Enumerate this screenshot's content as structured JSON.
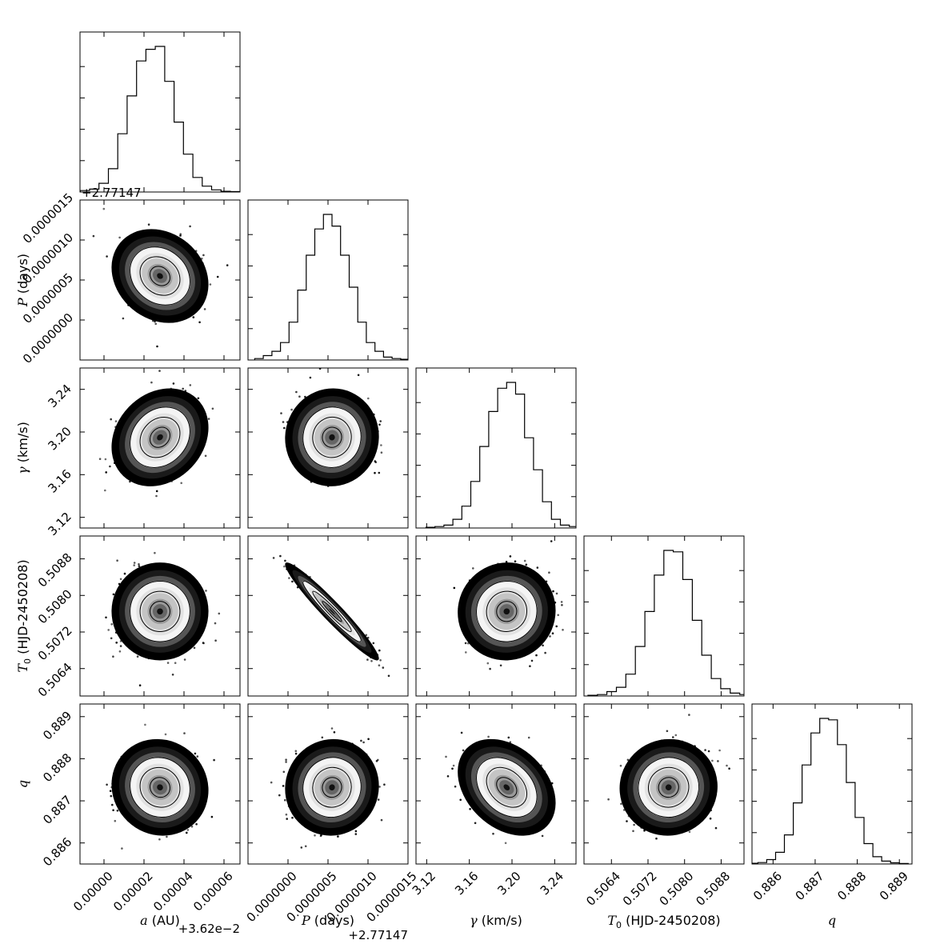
{
  "chart_data": {
    "type": "corner",
    "parameters": [
      {
        "id": "a",
        "symbol": "a",
        "sub": "",
        "unit": " (AU)",
        "offset": "+3.62e−2",
        "lim": [
          -1.2e-05,
          6.8e-05
        ],
        "mean": 2.8e-05,
        "sd": 9.5e-06,
        "ticks": [
          0.0,
          2e-05,
          4e-05,
          6e-05
        ],
        "tick_labels": [
          "0.00000",
          "0.00002",
          "0.00004",
          "0.00006"
        ]
      },
      {
        "id": "P",
        "symbol": "P",
        "sub": "",
        "unit": " (days)",
        "offset": "+2.77147",
        "lim": [
          -5e-07,
          1.5e-06
        ],
        "mean": 5.5e-07,
        "sd": 2.3e-07,
        "ticks": [
          0.0,
          5e-07,
          1e-06,
          1.5e-06
        ],
        "tick_labels": [
          "0.0000000",
          "0.0000005",
          "0.0000010",
          "0.0000015"
        ]
      },
      {
        "id": "gamma",
        "symbol": "γ",
        "sub": "",
        "unit": " (km/s)",
        "offset": "",
        "lim": [
          3.11,
          3.26
        ],
        "mean": 3.195,
        "sd": 0.018,
        "ticks": [
          3.12,
          3.16,
          3.2,
          3.24
        ],
        "tick_labels": [
          "3.12",
          "3.16",
          "3.20",
          "3.24"
        ]
      },
      {
        "id": "T0",
        "symbol": "T",
        "sub": "0",
        "unit": " (HJD-2450208)",
        "offset": "",
        "lim": [
          0.5058,
          0.5093
        ],
        "mean": 0.50765,
        "sd": 0.00042,
        "ticks": [
          0.5064,
          0.5072,
          0.508,
          0.5088
        ],
        "tick_labels": [
          "0.5064",
          "0.5072",
          "0.5080",
          "0.5088"
        ]
      },
      {
        "id": "q",
        "symbol": "q",
        "sub": "",
        "unit": "",
        "offset": "",
        "lim": [
          0.8855,
          0.8893
        ],
        "mean": 0.88732,
        "sd": 0.00045,
        "ticks": [
          0.886,
          0.887,
          0.888,
          0.889
        ],
        "tick_labels": [
          "0.886",
          "0.887",
          "0.888",
          "0.889"
        ]
      }
    ],
    "histograms": [
      [
        0.01,
        0.02,
        0.06,
        0.16,
        0.4,
        0.66,
        0.9,
        0.98,
        1.0,
        0.76,
        0.48,
        0.26,
        0.1,
        0.04,
        0.015,
        0.005,
        0.003
      ],
      [
        0.01,
        0.03,
        0.06,
        0.12,
        0.26,
        0.48,
        0.72,
        0.9,
        1.0,
        0.92,
        0.72,
        0.5,
        0.26,
        0.12,
        0.06,
        0.02,
        0.01,
        0.005
      ],
      [
        0.005,
        0.01,
        0.02,
        0.06,
        0.15,
        0.32,
        0.56,
        0.8,
        0.96,
        1.0,
        0.92,
        0.62,
        0.4,
        0.18,
        0.06,
        0.02,
        0.01,
        0.005
      ],
      [
        0.005,
        0.01,
        0.03,
        0.06,
        0.15,
        0.34,
        0.58,
        0.83,
        1.0,
        0.99,
        0.8,
        0.52,
        0.28,
        0.12,
        0.05,
        0.02,
        0.01
      ],
      [
        0.005,
        0.01,
        0.03,
        0.08,
        0.2,
        0.42,
        0.68,
        0.9,
        1.0,
        0.99,
        0.82,
        0.56,
        0.32,
        0.14,
        0.05,
        0.02,
        0.008,
        0.004
      ]
    ],
    "correlations": [
      {
        "i": 1,
        "j": 0,
        "rho": -0.18
      },
      {
        "i": 2,
        "j": 0,
        "rho": 0.2
      },
      {
        "i": 2,
        "j": 1,
        "rho": 0.02
      },
      {
        "i": 3,
        "j": 0,
        "rho": 0.0
      },
      {
        "i": 3,
        "j": 1,
        "rho": -0.96
      },
      {
        "i": 3,
        "j": 2,
        "rho": 0.02
      },
      {
        "i": 4,
        "j": 0,
        "rho": -0.06
      },
      {
        "i": 4,
        "j": 1,
        "rho": 0.03
      },
      {
        "i": 4,
        "j": 2,
        "rho": -0.32
      },
      {
        "i": 4,
        "j": 3,
        "rho": 0.02
      }
    ],
    "contour_levels_sigma": [
      0.5,
      1.0,
      1.5
    ],
    "grid": false
  }
}
